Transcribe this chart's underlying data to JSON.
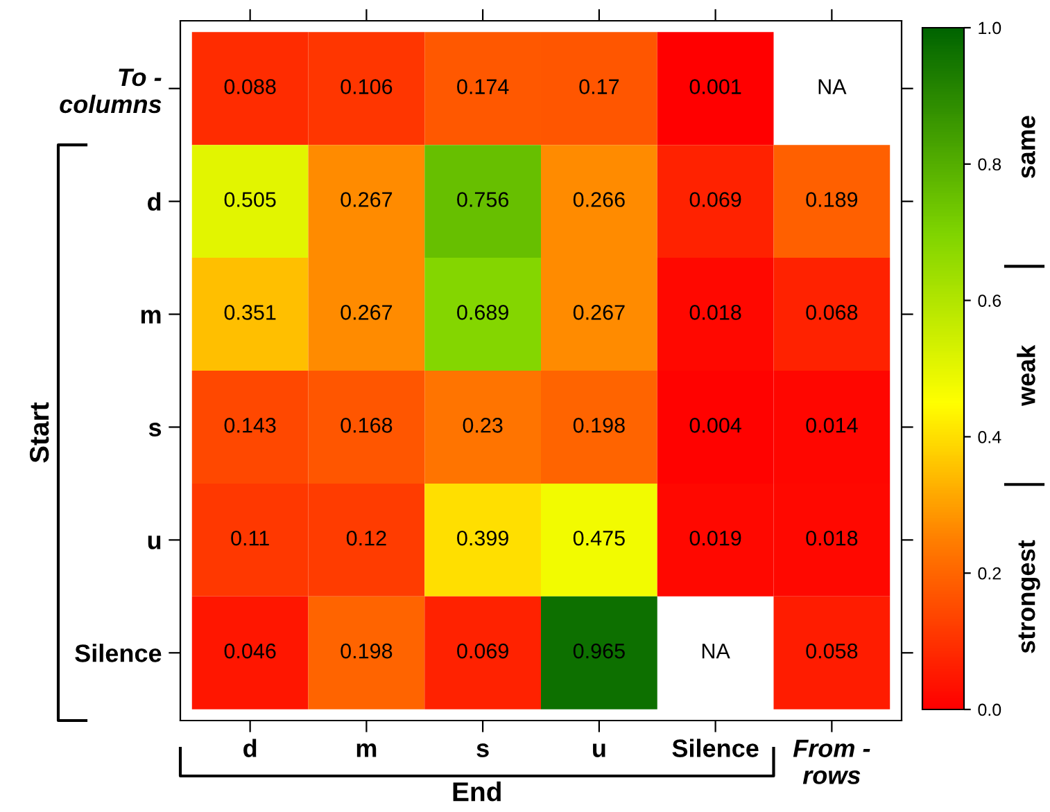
{
  "chart_data": {
    "type": "heatmap",
    "xlabel": "End",
    "ylabel": "Start",
    "categories": [
      "d",
      "m",
      "s",
      "u",
      "Silence",
      "From -\nrows"
    ],
    "y_categories": [
      "To -\ncolumns",
      "d",
      "m",
      "s",
      "u",
      "Silence"
    ],
    "cells": [
      [
        0.088,
        0.106,
        0.174,
        0.17,
        0.001,
        null
      ],
      [
        0.505,
        0.267,
        0.756,
        0.266,
        0.069,
        0.189
      ],
      [
        0.351,
        0.267,
        0.689,
        0.267,
        0.018,
        0.068
      ],
      [
        0.143,
        0.168,
        0.23,
        0.198,
        0.004,
        0.014
      ],
      [
        0.11,
        0.12,
        0.399,
        0.475,
        0.019,
        0.018
      ],
      [
        0.046,
        0.198,
        0.069,
        0.965,
        null,
        0.058
      ]
    ],
    "cell_labels": [
      [
        "0.088",
        "0.106",
        "0.174",
        "0.17",
        "0.001",
        "NA"
      ],
      [
        "0.505",
        "0.267",
        "0.756",
        "0.266",
        "0.069",
        "0.189"
      ],
      [
        "0.351",
        "0.267",
        "0.689",
        "0.267",
        "0.018",
        "0.068"
      ],
      [
        "0.143",
        "0.168",
        "0.23",
        "0.198",
        "0.004",
        "0.014"
      ],
      [
        "0.11",
        "0.12",
        "0.399",
        "0.475",
        "0.019",
        "0.018"
      ],
      [
        "0.046",
        "0.198",
        "0.069",
        "0.965",
        "NA",
        "0.058"
      ]
    ],
    "clim": [
      0,
      1
    ],
    "cticks": [
      {
        "value": 0,
        "label": "0.0"
      },
      0.2,
      0.4,
      0.6,
      0.8,
      {
        "value": 1,
        "label": "1.0"
      }
    ],
    "annotations": [
      "strongest",
      "weak",
      "same"
    ]
  }
}
